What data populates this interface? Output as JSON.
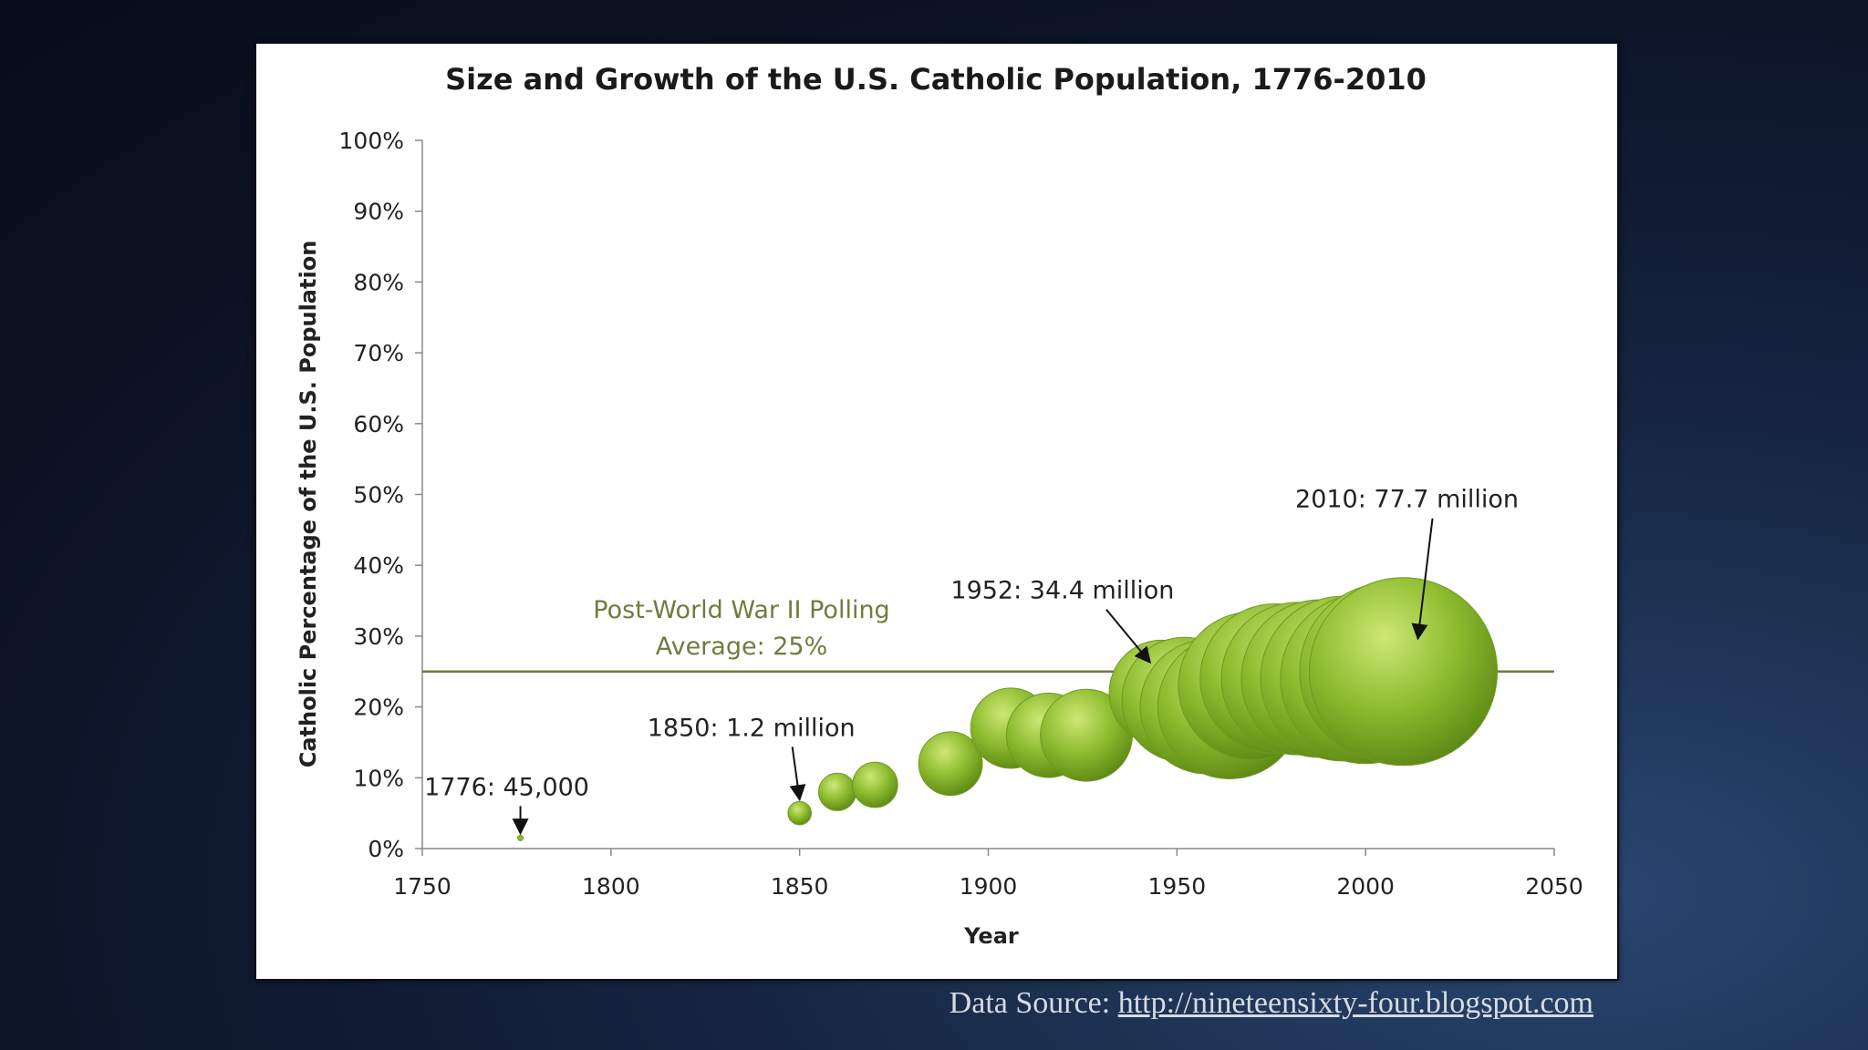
{
  "chart_data": {
    "type": "scatter",
    "subtype": "bubble",
    "title": "Size and Growth of the U.S. Catholic Population, 1776-2010",
    "xlabel": "Year",
    "ylabel": "Catholic Percentage of the U.S. Population",
    "xlim": [
      1750,
      2050
    ],
    "ylim": [
      0,
      100
    ],
    "x_ticks": [
      "1750",
      "1800",
      "1850",
      "1900",
      "1950",
      "2000",
      "2050"
    ],
    "y_ticks": [
      "0%",
      "10%",
      "20%",
      "30%",
      "40%",
      "50%",
      "60%",
      "70%",
      "80%",
      "90%",
      "100%"
    ],
    "grid": false,
    "legend": "none",
    "bubble_color": "#8dbb2e",
    "reference_line": {
      "y": 25,
      "label_line1": "Post-World War II Polling",
      "label_line2": "Average: 25%",
      "color": "#6c7d3e"
    },
    "points": [
      {
        "x": 1776,
        "y": 1.5,
        "size_millions": 0.045
      },
      {
        "x": 1850,
        "y": 5,
        "size_millions": 1.2
      },
      {
        "x": 1860,
        "y": 8,
        "size_millions": 3.1
      },
      {
        "x": 1870,
        "y": 9,
        "size_millions": 4.5
      },
      {
        "x": 1890,
        "y": 12,
        "size_millions": 8.9
      },
      {
        "x": 1906,
        "y": 17,
        "size_millions": 14.2
      },
      {
        "x": 1916,
        "y": 16,
        "size_millions": 15.7
      },
      {
        "x": 1926,
        "y": 16,
        "size_millions": 18.6
      },
      {
        "x": 1946,
        "y": 22,
        "size_millions": 24.4
      },
      {
        "x": 1952,
        "y": 21,
        "size_millions": 34.4
      },
      {
        "x": 1958,
        "y": 20,
        "size_millions": 39.5
      },
      {
        "x": 1964,
        "y": 20,
        "size_millions": 45.6
      },
      {
        "x": 1970,
        "y": 23,
        "size_millions": 48.2
      },
      {
        "x": 1976,
        "y": 24,
        "size_millions": 49.3
      },
      {
        "x": 1982,
        "y": 24,
        "size_millions": 51.2
      },
      {
        "x": 1988,
        "y": 24,
        "size_millions": 54.9
      },
      {
        "x": 1994,
        "y": 24,
        "size_millions": 59.8
      },
      {
        "x": 2000,
        "y": 24,
        "size_millions": 63.7
      },
      {
        "x": 2006,
        "y": 25,
        "size_millions": 69.1
      },
      {
        "x": 2010,
        "y": 25,
        "size_millions": 77.7
      }
    ],
    "annotations": [
      {
        "text": "1776: 45,000",
        "x": 1776,
        "y": 1.5
      },
      {
        "text": "1850: 1.2 million",
        "x": 1850,
        "y": 5
      },
      {
        "text": "1952:  34.4 million",
        "x": 1952,
        "y": 21
      },
      {
        "text": "2010:  77.7 million",
        "x": 2010,
        "y": 25
      }
    ]
  },
  "footer": {
    "source_prefix": "Data Source: ",
    "source_link": "http://nineteensixty-four.blogspot.com"
  }
}
